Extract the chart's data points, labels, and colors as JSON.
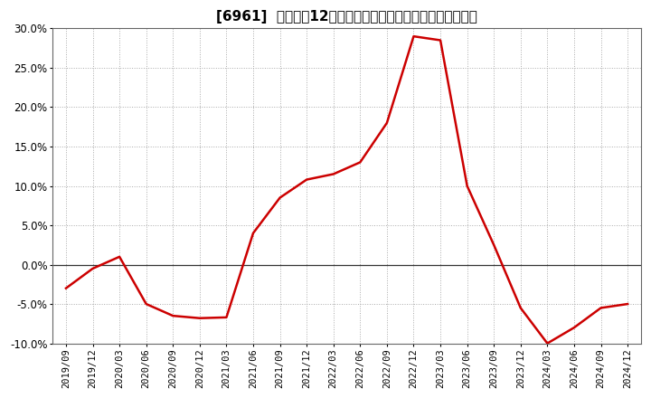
{
  "title": "[6961]  売上高の12か月移動合計の対前年同期増減率の推移",
  "line_color": "#cc0000",
  "background_color": "#ffffff",
  "plot_bg_color": "#ffffff",
  "grid_color": "#aaaaaa",
  "zero_line_color": "#333333",
  "ylim": [
    -0.1,
    0.3
  ],
  "yticks": [
    -0.1,
    -0.05,
    0.0,
    0.05,
    0.1,
    0.15,
    0.2,
    0.25,
    0.3
  ],
  "dates": [
    "2019/09",
    "2019/12",
    "2020/03",
    "2020/06",
    "2020/09",
    "2020/12",
    "2021/03",
    "2021/06",
    "2021/09",
    "2021/12",
    "2022/03",
    "2022/06",
    "2022/09",
    "2022/12",
    "2023/03",
    "2023/06",
    "2023/09",
    "2023/12",
    "2024/03",
    "2024/06",
    "2024/09",
    "2024/12"
  ],
  "values": [
    -0.03,
    -0.005,
    0.01,
    -0.05,
    -0.065,
    -0.068,
    -0.067,
    0.04,
    0.085,
    0.108,
    0.115,
    0.13,
    0.18,
    0.29,
    0.285,
    0.1,
    0.025,
    -0.055,
    -0.1,
    -0.08,
    -0.055,
    -0.05
  ]
}
